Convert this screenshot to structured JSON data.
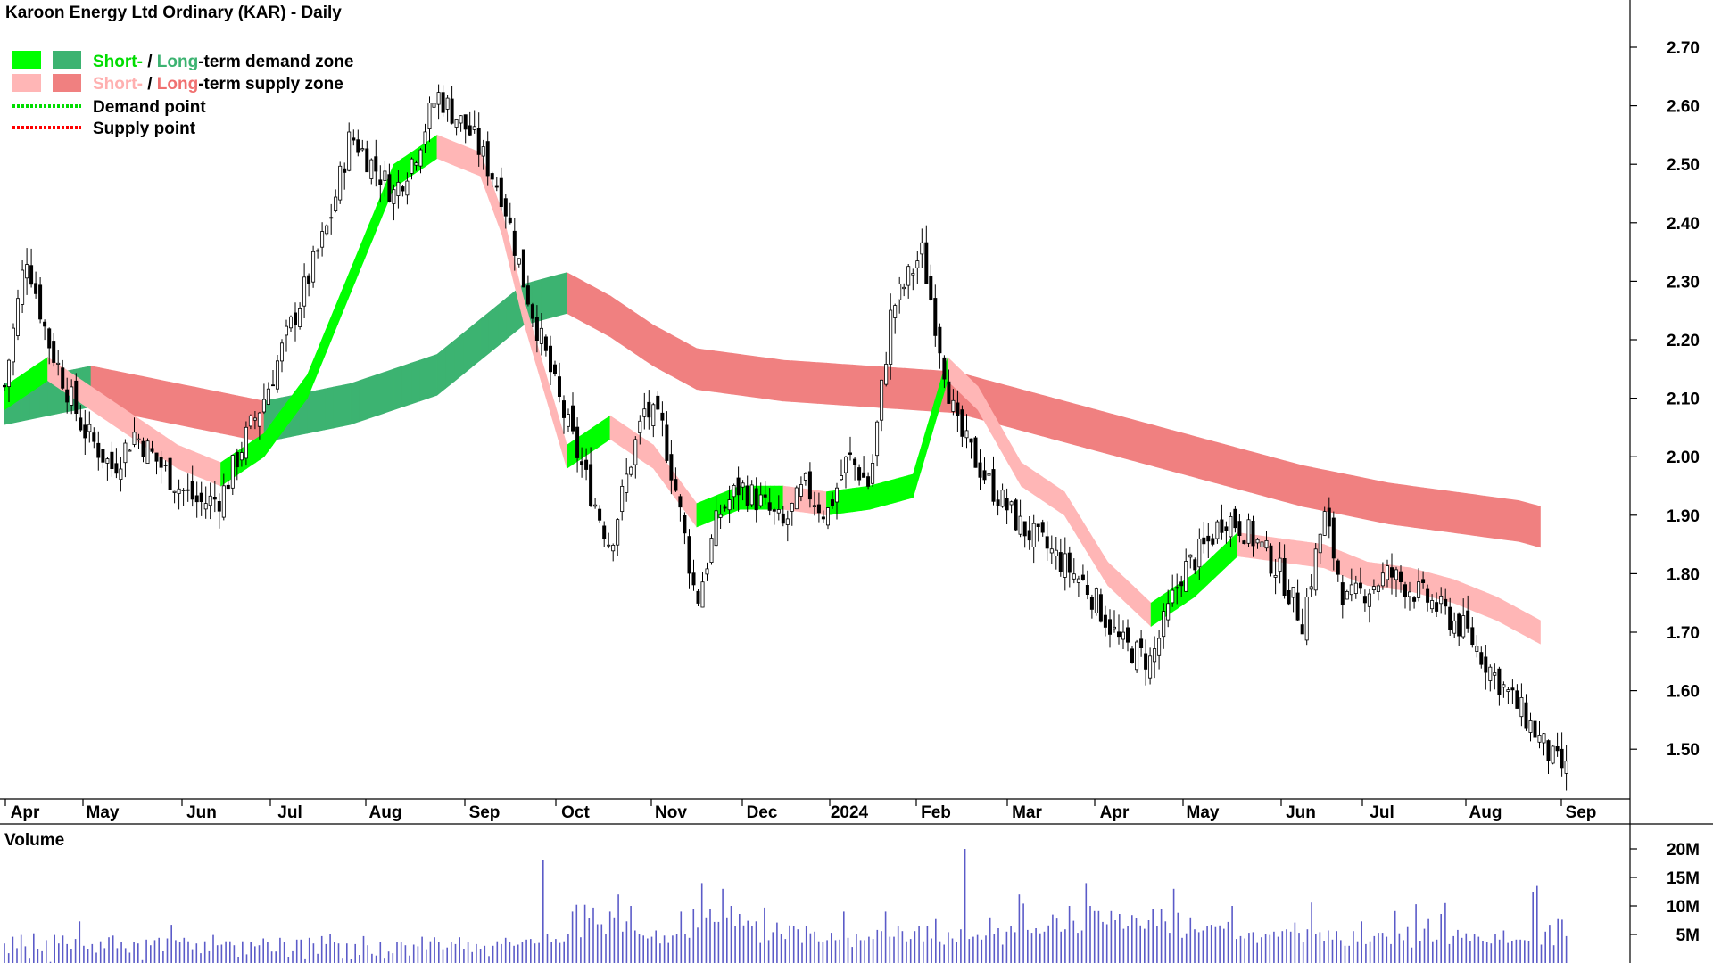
{
  "chart_data": [
    {
      "type": "candlestick",
      "title": "Karoon Energy Ltd Ordinary (KAR) - Daily",
      "legend": [
        {
          "short_label": "Short-",
          "separator": " / ",
          "long_label": "Long",
          "rest": "-term demand zone",
          "short_color": "#00ff00",
          "long_color": "#3cb371"
        },
        {
          "short_label": "Short-",
          "separator": " / ",
          "long_label": "Long",
          "rest": "-term supply zone",
          "short_color": "#ffb6b6",
          "long_color": "#f08080"
        },
        {
          "label": "Demand point",
          "color": "#00ff00",
          "style": "dotted"
        },
        {
          "label": "Supply point",
          "color": "#ff0000",
          "style": "dotted"
        }
      ],
      "legend_placement": "top-left",
      "x_tick_labels": [
        "Apr",
        "May",
        "Jun",
        "Jul",
        "Aug",
        "Sep",
        "Oct",
        "Nov",
        "Dec",
        "2024",
        "Feb",
        "Mar",
        "Apr",
        "May",
        "Jun",
        "Jul",
        "Aug",
        "Sep"
      ],
      "y_tick_labels": [
        "2.70",
        "2.60",
        "2.50",
        "2.40",
        "2.30",
        "2.20",
        "2.10",
        "2.00",
        "1.90",
        "1.80",
        "1.70",
        "1.60",
        "1.50"
      ],
      "ylim": [
        1.43,
        2.78
      ],
      "y_axis_side": "right",
      "close_path": {
        "x_days": [
          0,
          5,
          10,
          18,
          25,
          30,
          40,
          45,
          50,
          55,
          60,
          65,
          70,
          75,
          80,
          85,
          90,
          95,
          100,
          108,
          115,
          120,
          128,
          135,
          140,
          145,
          148,
          152,
          155,
          160,
          165,
          170,
          175,
          180,
          185,
          190,
          195,
          200,
          205,
          212,
          220,
          228,
          235,
          240,
          250,
          258,
          265,
          272,
          278,
          282,
          286,
          290,
          295,
          300,
          305,
          310,
          320,
          330,
          338,
          345,
          352,
          358,
          365
        ],
        "close": [
          2.12,
          2.35,
          2.2,
          2.05,
          1.98,
          2.04,
          1.95,
          1.92,
          1.93,
          2.02,
          2.1,
          2.2,
          2.3,
          2.4,
          2.55,
          2.5,
          2.45,
          2.52,
          2.62,
          2.55,
          2.45,
          2.3,
          2.1,
          1.95,
          1.85,
          2.0,
          2.08,
          2.05,
          1.95,
          1.75,
          1.9,
          1.95,
          1.92,
          1.88,
          1.95,
          1.9,
          2.0,
          1.95,
          2.25,
          2.35,
          2.05,
          1.95,
          1.88,
          1.85,
          1.78,
          1.68,
          1.65,
          1.8,
          1.85,
          1.9,
          1.88,
          1.85,
          1.8,
          1.72,
          1.9,
          1.75,
          1.8,
          1.75,
          1.7,
          1.62,
          1.55,
          1.48,
          1.44
        ]
      },
      "zones": {
        "short_term": {
          "x_days": [
            0,
            10,
            20,
            30,
            40,
            50,
            60,
            70,
            80,
            90,
            100,
            110,
            115,
            120,
            130,
            140,
            150,
            160,
            170,
            180,
            190,
            200,
            210,
            218,
            225,
            235,
            245,
            255,
            265,
            275,
            285,
            295,
            305,
            315,
            325,
            335,
            345,
            355
          ],
          "center": [
            2.1,
            2.15,
            2.1,
            2.05,
            2.0,
            1.97,
            2.02,
            2.12,
            2.3,
            2.48,
            2.53,
            2.5,
            2.4,
            2.25,
            2.0,
            2.05,
            2.0,
            1.9,
            1.93,
            1.93,
            1.92,
            1.93,
            1.95,
            2.15,
            2.1,
            1.97,
            1.92,
            1.8,
            1.73,
            1.78,
            1.85,
            1.84,
            1.83,
            1.8,
            1.79,
            1.77,
            1.74,
            1.7
          ],
          "width": 0.04
        },
        "long_term": {
          "x_days": [
            0,
            20,
            40,
            60,
            80,
            100,
            110,
            120,
            130,
            140,
            150,
            160,
            170,
            180,
            200,
            220,
            240,
            260,
            280,
            300,
            320,
            340,
            350,
            355
          ],
          "center": [
            2.09,
            2.12,
            2.09,
            2.06,
            2.09,
            2.14,
            2.2,
            2.26,
            2.28,
            2.24,
            2.19,
            2.15,
            2.14,
            2.13,
            2.12,
            2.11,
            2.07,
            2.03,
            1.99,
            1.95,
            1.92,
            1.9,
            1.89,
            1.88
          ],
          "width": 0.07
        }
      }
    },
    {
      "type": "bar",
      "title": "Volume",
      "y_tick_labels": [
        "20M",
        "15M",
        "10M",
        "5M"
      ],
      "ylim": [
        0,
        20
      ],
      "unit": "M shares",
      "values": [
        3.4,
        1.7,
        4.6,
        2.6,
        4.9,
        2.9,
        0.9,
        5.2,
        2.5,
        2.2,
        4.0,
        0.2,
        4.9,
        3.4,
        4.8,
        3.3,
        2.5,
        4.2,
        7.3,
        3.0,
        2.5,
        3.3,
        1.8,
        3.8,
        2.6,
        4.5,
        4.8,
        2.6,
        3.6,
        2.6,
        1.8,
        3.7,
        3.4,
        0.5,
        4.1,
        3.1,
        4.0,
        4.4,
        2.1,
        4.3,
        6.7,
        4.0,
        3.6,
        4.4,
        3.8,
        2.4,
        3.4,
        1.7,
        3.8,
        2.2,
        4.9,
        3.1,
        3.2,
        3.8,
        3.8,
        3.1,
        1.1,
        3.8,
        1.5,
        3.7,
        2.9,
        3.1,
        4.3,
        3.6,
        2.0,
        2.0,
        4.4,
        3.7,
        1.1,
        2.2,
        4.1,
        4.1,
        0.8,
        4.4,
        3.4,
        1.6,
        4.7,
        3.3,
        5.0,
        3.6,
        3.4,
        0.9,
        3.4,
        0.7,
        3.3,
        1.4,
        4.7,
        3.1,
        1.6,
        1.3,
        3.7,
        0.9,
        2.0,
        1.7,
        3.6,
        3.6,
        3.1,
        1.3,
        3.2,
        2.9,
        4.6,
        2.4,
        3.8,
        4.5,
        3.7,
        2.4,
        2.7,
        3.7,
        3.3,
        4.5,
        2.5,
        3.6,
        1.9,
        3.3,
        2.5,
        3.0,
        1.2,
        3.0,
        3.8,
        3.3,
        4.4,
        3.7,
        3.0,
        3.2,
        3.7,
        4.1,
        4.2,
        3.4,
        3.5,
        18.0,
        5.1,
        3.7,
        4.2,
        3.5,
        3.8,
        5.0,
        9.0,
        10.2,
        4.5,
        10.2,
        7.9,
        9.7,
        6.8,
        6.8,
        5.1,
        9.0,
        8.0,
        12.0,
        5.5,
        7.3,
        10.0,
        5.7,
        5.0,
        4.8,
        4.3,
        4.6,
        5.7,
        3.4,
        4.8,
        3.5,
        4.8,
        5.1,
        9.0,
        5.0,
        4.4,
        9.5,
        6.2,
        14.0,
        8.0,
        9.5,
        7.2,
        7.2,
        13.0,
        8.0,
        10.0,
        6.4,
        8.6,
        6.6,
        7.4,
        6.4,
        7.3,
        3.5,
        9.7,
        4.0,
        5.4,
        7.1,
        5.1,
        4.2,
        6.6,
        6.4,
        5.9,
        3.5,
        6.4,
        5.2,
        5.5,
        3.8,
        3.7,
        4.0,
        5.3,
        4.0,
        4.1,
        9.0,
        4.4,
        2.8,
        5.0,
        4.0,
        4.0,
        4.6,
        4.2,
        5.8,
        5.6,
        9.0,
        4.6,
        4.6,
        6.4,
        5.6,
        3.8,
        4.2,
        5.6,
        6.4,
        3.8,
        6.5,
        4.3,
        7.7,
        3.8,
        3.2,
        5.4,
        4.3,
        3.6,
        5.9,
        20.0,
        4.2,
        4.6,
        4.9,
        4.1,
        4.8,
        8.0,
        5.0,
        6.1,
        3.2,
        5.5,
        6.4,
        5.4,
        12.0,
        10.4,
        5.8,
        5.3,
        6.1,
        5.2,
        5.5,
        6.6,
        8.5,
        7.8,
        5.5,
        5.9,
        10.0,
        7.4,
        5.3,
        5.7,
        14.0,
        10.0,
        9.1,
        9.1,
        7.2,
        6.8,
        9.1,
        7.5,
        8.6,
        6.0,
        6.5,
        8.4,
        7.9,
        6.6,
        6.0,
        7.5,
        9.5,
        6.4,
        9.5,
        7.3,
        5.3,
        13.0,
        8.8,
        4.4,
        5.2,
        8.0,
        5.9,
        5.4,
        5.7,
        6.4,
        6.7,
        6.3,
        6.6,
        6.0,
        7.2,
        10.0,
        4.2,
        4.7,
        4.3,
        5.3,
        5.4,
        3.5,
        4.5,
        5.0,
        4.9,
        5.5,
        4.6,
        5.6,
        5.9,
        5.5,
        7.1,
        5.3,
        3.6,
        5.9,
        10.6,
        5.1,
        5.4,
        3.9,
        5.7,
        4.1,
        5.6,
        4.0,
        3.0,
        3.0,
        5.6,
        3.8,
        7.3,
        3.3,
        3.8,
        4.7,
        5.3,
        5.3,
        4.6,
        3.3,
        9.1,
        5.2,
        4.0,
        6.3,
        2.7,
        10.3,
        3.9,
        6.0,
        7.7,
        3.8,
        4.1,
        8.6,
        10.5,
        3.3,
        4.7,
        5.8,
        4.4,
        5.2,
        3.9,
        5.1,
        4.6,
        3.9,
        3.6,
        3.4,
        5.0,
        4.1,
        5.7,
        3.5,
        3.9,
        4.1,
        4.1,
        4.0,
        3.9,
        12.5,
        13.5,
        3.2,
        5.5,
        6.7,
        3.1,
        7.7,
        7.6,
        4.7
      ]
    }
  ]
}
